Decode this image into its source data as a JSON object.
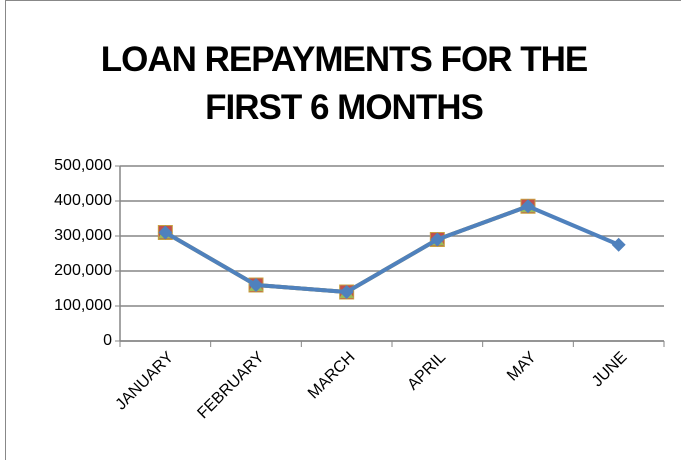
{
  "chart_data": {
    "type": "line",
    "title": "LOAN REPAYMENTS FOR THE FIRST 6 MONTHS",
    "categories": [
      "JANUARY",
      "FEBRUARY",
      "MARCH",
      "APRIL",
      "MAY",
      "JUNE"
    ],
    "series": [
      {
        "color": "#c0504d",
        "marker": "square",
        "values": [
          310000,
          160000,
          140000,
          290000,
          385000,
          null
        ]
      },
      {
        "color": "#9bbb59",
        "marker": "triangle",
        "values": [
          310000,
          160000,
          140000,
          290000,
          385000,
          null
        ]
      },
      {
        "color": "#4f81bd",
        "marker": "diamond",
        "values": [
          310000,
          160000,
          140000,
          290000,
          385000,
          275000
        ]
      }
    ],
    "ylim": [
      0,
      500000
    ],
    "yticks": [
      0,
      {
        "value": 100000,
        "label": "100,000"
      },
      {
        "value": 200000,
        "label": "200,000"
      },
      {
        "value": 300000,
        "label": "300,000"
      },
      {
        "value": 400000,
        "label": "400,000"
      },
      {
        "value": 500000,
        "label": "500,000"
      }
    ],
    "grid": true
  }
}
